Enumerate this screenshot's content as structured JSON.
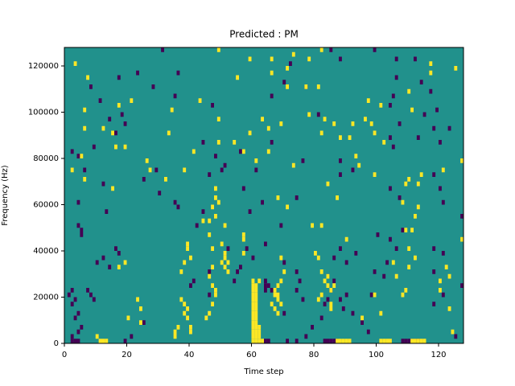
{
  "chart_data": {
    "type": "heatmap",
    "title": "Predicted : PM",
    "x_label": "Time step",
    "y_label": "Frequency (Hz)",
    "xlim": [
      0,
      128
    ],
    "ylim": [
      0,
      128000
    ],
    "xticks": [
      0,
      20,
      40,
      60,
      80,
      100,
      120
    ],
    "yticks": [
      0,
      20000,
      40000,
      60000,
      80000,
      100000,
      120000
    ],
    "grid_shape": [
      64,
      128
    ],
    "background_color": "#21918c",
    "series": [
      {
        "color": "#440154",
        "x": [
          2,
          3,
          4,
          2,
          4,
          5,
          3,
          4,
          2,
          3,
          1,
          2,
          9,
          8,
          7,
          14,
          10,
          12,
          19,
          21,
          25,
          16,
          17,
          5,
          5,
          4,
          13,
          4,
          12,
          6,
          4,
          9,
          2,
          14,
          18,
          19,
          16,
          11,
          8,
          17,
          23,
          28,
          31,
          36,
          35,
          47,
          44,
          48,
          51,
          50,
          46,
          29,
          25,
          30,
          35,
          36,
          44,
          42,
          40,
          41,
          46,
          46,
          54,
          55,
          56,
          52,
          58,
          60,
          59,
          57,
          61,
          63,
          56,
          66,
          66,
          70,
          72,
          77,
          81,
          76,
          88,
          92,
          88,
          74,
          69,
          64,
          70,
          74,
          75,
          74,
          76,
          64,
          64,
          65,
          66,
          64,
          68,
          70,
          71,
          74,
          64,
          65,
          77,
          79,
          82,
          83,
          84,
          85,
          86,
          84,
          86,
          88,
          90,
          93,
          88,
          89,
          90,
          92,
          95,
          97,
          98,
          99,
          102,
          103,
          106,
          104,
          100,
          107,
          108,
          104,
          105,
          104,
          107,
          104,
          105,
          106,
          106,
          117,
          114,
          119,
          120,
          123,
          115,
          118,
          113,
          120,
          118,
          121,
          127,
          118,
          121,
          118,
          121,
          118,
          125,
          127,
          83,
          84,
          85,
          86,
          87,
          108,
          109,
          110,
          111,
          112,
          113,
          88,
          85,
          99,
          112
        ],
        "y": [
          0,
          0,
          0,
          2000,
          4000,
          6000,
          10000,
          12000,
          16000,
          18000,
          20000,
          22000,
          18000,
          20000,
          22000,
          32000,
          34000,
          36000,
          0,
          2000,
          8000,
          40000,
          38000,
          46000,
          48000,
          50000,
          56000,
          60000,
          68000,
          74000,
          80000,
          84000,
          82000,
          96000,
          98000,
          94000,
          90000,
          104000,
          110000,
          114000,
          116000,
          110000,
          126000,
          116000,
          106000,
          102000,
          86000,
          80000,
          76000,
          74000,
          72000,
          74000,
          70000,
          64000,
          60000,
          58000,
          56000,
          50000,
          24000,
          26000,
          20000,
          30000,
          26000,
          30000,
          32000,
          40000,
          40000,
          36000,
          56000,
          66000,
          74000,
          60000,
          82000,
          86000,
          106000,
          112000,
          120000,
          110000,
          98000,
          78000,
          78000,
          74000,
          72000,
          62000,
          50000,
          42000,
          34000,
          30000,
          26000,
          22000,
          18000,
          26000,
          24000,
          24000,
          22000,
          22000,
          20000,
          12000,
          0,
          0,
          0,
          0,
          2000,
          6000,
          10000,
          16000,
          18000,
          22000,
          26000,
          28000,
          36000,
          40000,
          34000,
          38000,
          18000,
          14000,
          20000,
          12000,
          8000,
          4000,
          20000,
          30000,
          28000,
          34000,
          40000,
          44000,
          46000,
          62000,
          48000,
          66000,
          84000,
          88000,
          94000,
          102000,
          106000,
          114000,
          122000,
          108000,
          112000,
          100000,
          86000,
          92000,
          98000,
          92000,
          88000,
          66000,
          72000,
          60000,
          54000,
          40000,
          38000,
          30000,
          20000,
          16000,
          2000,
          24000,
          0,
          0,
          0,
          0,
          0,
          0,
          0,
          0,
          0,
          0,
          0,
          122000,
          126000,
          126000,
          122000
        ]
      },
      {
        "color": "#fde725",
        "x": [
          11,
          12,
          13,
          10,
          24,
          24,
          23,
          20,
          17,
          19,
          15,
          6,
          2,
          5,
          7,
          3,
          6,
          12,
          6,
          16,
          19,
          15,
          21,
          17,
          26,
          27,
          32,
          33,
          38,
          41,
          34,
          43,
          49,
          49,
          55,
          54,
          57,
          61,
          59,
          63,
          65,
          59,
          66,
          71,
          71,
          66,
          73,
          49,
          37,
          38,
          39,
          40,
          39,
          46,
          47,
          47,
          46,
          50,
          51,
          51,
          52,
          51,
          50,
          52,
          47,
          48,
          48,
          47,
          46,
          45,
          39,
          39,
          38,
          37,
          38,
          40,
          40,
          35,
          35,
          36,
          48,
          46,
          48,
          48,
          49,
          47,
          51,
          44,
          57,
          57,
          57,
          60,
          61,
          60,
          60,
          60,
          60,
          60,
          60,
          60,
          61,
          62,
          63,
          61,
          62,
          61,
          62,
          61,
          62,
          61,
          61,
          61,
          60,
          61,
          60,
          61,
          60,
          61,
          60,
          61,
          60,
          61,
          60,
          62,
          66,
          67,
          68,
          67,
          67,
          68,
          69,
          68,
          69,
          68,
          70,
          69,
          71,
          68,
          65,
          73,
          69,
          78,
          77,
          81,
          78,
          82,
          86,
          88,
          91,
          94,
          93,
          99,
          99,
          101,
          102,
          92,
          98,
          97,
          96,
          83,
          82,
          84,
          87,
          79,
          80,
          81,
          82,
          83,
          84,
          84,
          85,
          86,
          82,
          81,
          85,
          85,
          87,
          88,
          89,
          90,
          91,
          101,
          102,
          103,
          104,
          111,
          112,
          113,
          114,
          115,
          95,
          101,
          99,
          108,
          106,
          109,
          105,
          110,
          112,
          110,
          108,
          111,
          109,
          112,
          113,
          113,
          109,
          110,
          114,
          121,
          111,
          110,
          117,
          117,
          125,
          127,
          124,
          123,
          120,
          120,
          123,
          122,
          127,
          82,
          90
        ],
        "y": [
          0,
          0,
          0,
          2000,
          8000,
          14000,
          18000,
          10000,
          32000,
          34000,
          66000,
          70000,
          74000,
          80000,
          114000,
          120000,
          100000,
          92000,
          92000,
          84000,
          84000,
          90000,
          104000,
          102000,
          78000,
          74000,
          70000,
          90000,
          74000,
          82000,
          100000,
          104000,
          86000,
          96000,
          114000,
          86000,
          82000,
          78000,
          90000,
          96000,
          92000,
          122000,
          122000,
          118000,
          110000,
          116000,
          124000,
          126000,
          30000,
          34000,
          40000,
          36000,
          42000,
          46000,
          40000,
          32000,
          28000,
          42000,
          38000,
          36000,
          34000,
          32000,
          34000,
          30000,
          24000,
          22000,
          20000,
          16000,
          12000,
          10000,
          14000,
          10000,
          16000,
          18000,
          12000,
          6000,
          4000,
          2000,
          4000,
          6000,
          62000,
          52000,
          54000,
          66000,
          60000,
          58000,
          50000,
          52000,
          44000,
          46000,
          38000,
          14000,
          14000,
          12000,
          10000,
          8000,
          6000,
          4000,
          2000,
          0,
          0,
          0,
          0,
          2000,
          2000,
          4000,
          4000,
          6000,
          6000,
          8000,
          10000,
          12000,
          16000,
          16000,
          18000,
          18000,
          20000,
          20000,
          22000,
          22000,
          24000,
          24000,
          26000,
          26000,
          16000,
          14000,
          12000,
          20000,
          22000,
          24000,
          26000,
          18000,
          16000,
          20000,
          30000,
          36000,
          58000,
          62000,
          82000,
          76000,
          94000,
          98000,
          110000,
          110000,
          122000,
          126000,
          94000,
          88000,
          88000,
          76000,
          80000,
          72000,
          90000,
          102000,
          86000,
          94000,
          94000,
          104000,
          96000,
          96000,
          90000,
          68000,
          62000,
          50000,
          38000,
          36000,
          30000,
          26000,
          28000,
          24000,
          22000,
          24000,
          20000,
          18000,
          14000,
          16000,
          0,
          0,
          0,
          0,
          0,
          0,
          0,
          0,
          0,
          0,
          0,
          0,
          0,
          0,
          10000,
          12000,
          20000,
          20000,
          28000,
          22000,
          34000,
          32000,
          36000,
          40000,
          60000,
          48000,
          48000,
          54000,
          58000,
          68000,
          68000,
          70000,
          72000,
          74000,
          100000,
          108000,
          116000,
          120000,
          118000,
          78000,
          4000,
          14000,
          26000,
          22000,
          28000,
          32000,
          44000,
          50000,
          44000
        ]
      }
    ]
  }
}
